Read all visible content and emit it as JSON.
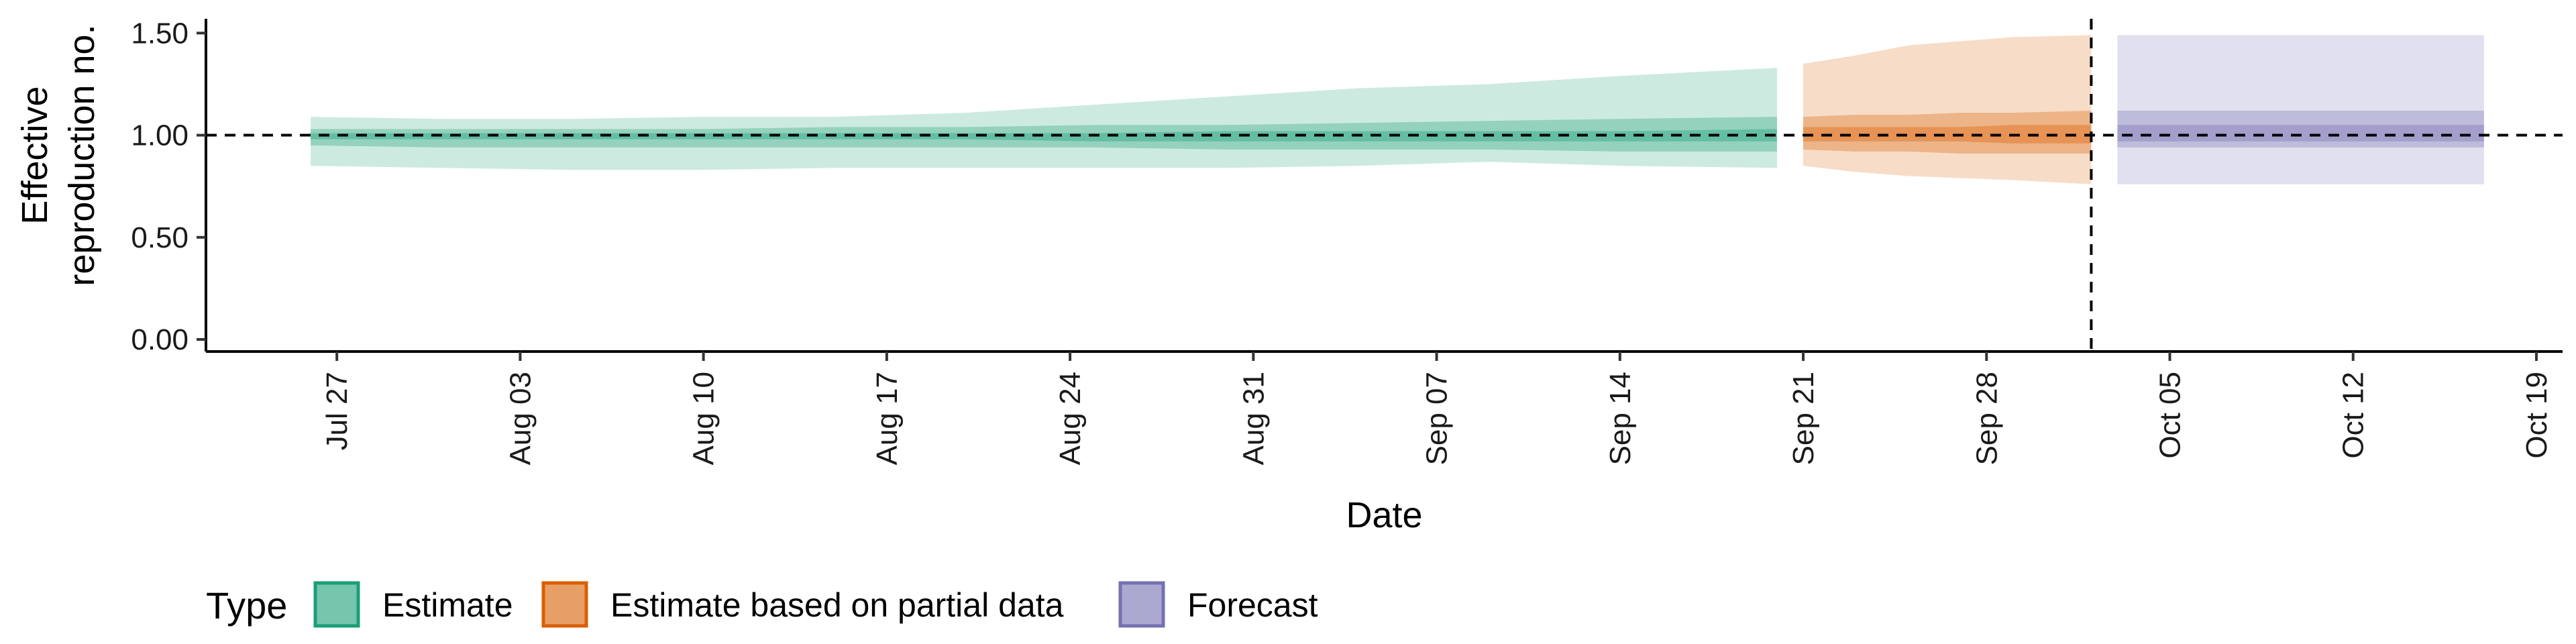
{
  "chart_data": {
    "type": "area",
    "xlabel": "Date",
    "ylabel_lines": [
      "Effective",
      "reproduction no."
    ],
    "ylim": [
      0,
      1.57
    ],
    "xlim": [
      "2020-07-22",
      "2020-10-20"
    ],
    "y_ticks": [
      0.0,
      0.5,
      1.0,
      1.5
    ],
    "y_tick_labels": [
      "0.00",
      "0.50",
      "1.00",
      "1.50"
    ],
    "x_ticks": [
      "2020-07-27",
      "2020-08-03",
      "2020-08-10",
      "2020-08-17",
      "2020-08-24",
      "2020-08-31",
      "2020-09-07",
      "2020-09-14",
      "2020-09-21",
      "2020-09-28",
      "2020-10-05",
      "2020-10-12",
      "2020-10-19"
    ],
    "x_tick_labels": [
      "Jul 27",
      "Aug 03",
      "Aug 10",
      "Aug 17",
      "Aug 24",
      "Aug 31",
      "Sep 07",
      "Sep 14",
      "Sep 21",
      "Sep 28",
      "Oct 05",
      "Oct 12",
      "Oct 19"
    ],
    "reference_line": {
      "y": 1.0,
      "style": "dashed"
    },
    "forecast_start_line": {
      "x": "2020-10-02",
      "style": "dashed"
    },
    "grid": false,
    "legend": {
      "title": "Type",
      "position": "bottom-left",
      "entries": [
        "Estimate",
        "Estimate based on partial data",
        "Forecast"
      ]
    },
    "colors": {
      "Estimate": "#1b9e77",
      "Estimate based on partial data": "#d95f02",
      "Forecast": "#7570b3"
    },
    "series": [
      {
        "name": "Estimate",
        "x": [
          "2020-07-26",
          "2020-07-31",
          "2020-08-05",
          "2020-08-10",
          "2020-08-15",
          "2020-08-20",
          "2020-08-25",
          "2020-08-30",
          "2020-09-04",
          "2020-09-09",
          "2020-09-14",
          "2020-09-20"
        ],
        "lower90": [
          0.85,
          0.84,
          0.83,
          0.83,
          0.84,
          0.84,
          0.84,
          0.84,
          0.85,
          0.87,
          0.85,
          0.84
        ],
        "upper90": [
          1.09,
          1.08,
          1.08,
          1.09,
          1.09,
          1.11,
          1.15,
          1.19,
          1.23,
          1.25,
          1.29,
          1.33
        ],
        "lower50": [
          0.95,
          0.94,
          0.94,
          0.94,
          0.94,
          0.94,
          0.94,
          0.93,
          0.93,
          0.93,
          0.92,
          0.92
        ],
        "upper50": [
          1.03,
          1.03,
          1.03,
          1.03,
          1.04,
          1.04,
          1.05,
          1.05,
          1.06,
          1.07,
          1.08,
          1.09
        ],
        "lower20": [
          0.98,
          0.98,
          0.98,
          0.98,
          0.98,
          0.98,
          0.97,
          0.97,
          0.97,
          0.97,
          0.97,
          0.97
        ],
        "upper20": [
          1.01,
          1.01,
          1.01,
          1.01,
          1.01,
          1.01,
          1.01,
          1.02,
          1.02,
          1.02,
          1.02,
          1.03
        ]
      },
      {
        "name": "Estimate based on partial data",
        "x": [
          "2020-09-21",
          "2020-09-23",
          "2020-09-25",
          "2020-09-27",
          "2020-09-29",
          "2020-10-02"
        ],
        "lower90": [
          0.85,
          0.82,
          0.8,
          0.79,
          0.78,
          0.76
        ],
        "upper90": [
          1.35,
          1.39,
          1.44,
          1.46,
          1.48,
          1.49
        ],
        "lower50": [
          0.93,
          0.92,
          0.92,
          0.91,
          0.91,
          0.91
        ],
        "upper50": [
          1.09,
          1.1,
          1.1,
          1.11,
          1.11,
          1.12
        ],
        "lower20": [
          0.97,
          0.97,
          0.97,
          0.97,
          0.96,
          0.96
        ],
        "upper20": [
          1.04,
          1.04,
          1.04,
          1.04,
          1.05,
          1.05
        ]
      },
      {
        "name": "Forecast",
        "x": [
          "2020-10-03",
          "2020-10-17"
        ],
        "lower90": [
          0.76,
          0.76
        ],
        "upper90": [
          1.49,
          1.49
        ],
        "lower50": [
          0.94,
          0.94
        ],
        "upper50": [
          1.12,
          1.12
        ],
        "lower20": [
          0.97,
          0.97
        ],
        "upper20": [
          1.05,
          1.05
        ]
      }
    ]
  }
}
